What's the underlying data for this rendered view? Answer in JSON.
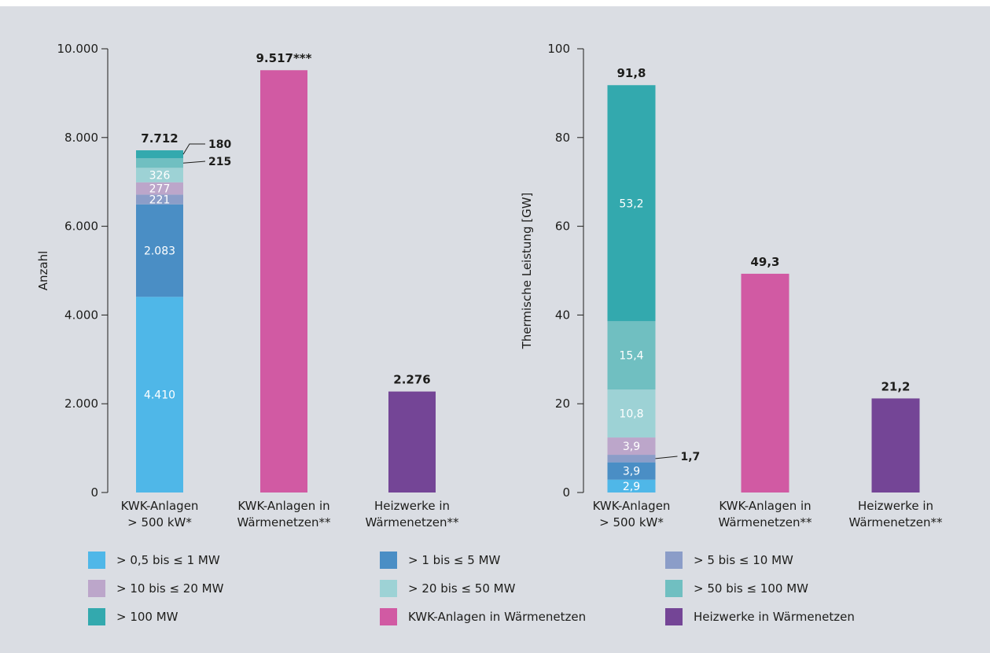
{
  "chart_data": [
    {
      "type": "bar",
      "stacked": true,
      "ylabel": "Anzahl",
      "ylim": [
        0,
        10000
      ],
      "yticks": [
        "0",
        "2.000",
        "4.000",
        "6.000",
        "8.000",
        "10.000"
      ],
      "categories": [
        [
          "KWK-Anlagen",
          "> 500 kW*"
        ],
        [
          "KWK-Anlagen in",
          "Wärmenetzen**"
        ],
        [
          "Heizwerke in",
          "Wärmenetzen**"
        ]
      ],
      "totals": [
        "7.712",
        "9.517***",
        "2.276"
      ],
      "stacks": [
        [
          {
            "key": "s1",
            "value": 4410,
            "label": "4.410"
          },
          {
            "key": "s2",
            "value": 2083,
            "label": "2.083"
          },
          {
            "key": "s3",
            "value": 221,
            "label": "221"
          },
          {
            "key": "s4",
            "value": 277,
            "label": "277"
          },
          {
            "key": "s5",
            "value": 326,
            "label": "326"
          },
          {
            "key": "s6",
            "value": 215,
            "label": "215",
            "callout": true
          },
          {
            "key": "s7",
            "value": 180,
            "label": "180",
            "callout": true
          }
        ],
        [
          {
            "key": "kwk",
            "value": 9517,
            "label": ""
          }
        ],
        [
          {
            "key": "heiz",
            "value": 2276,
            "label": ""
          }
        ]
      ]
    },
    {
      "type": "bar",
      "stacked": true,
      "ylabel": "Thermische Leistung [GW]",
      "ylim": [
        0,
        100
      ],
      "yticks": [
        "0",
        "20",
        "40",
        "60",
        "80",
        "100"
      ],
      "categories": [
        [
          "KWK-Anlagen",
          "> 500 kW*"
        ],
        [
          "KWK-Anlagen in",
          "Wärmenetzen**"
        ],
        [
          "Heizwerke in",
          "Wärmenetzen**"
        ]
      ],
      "totals": [
        "91,8",
        "49,3",
        "21,2"
      ],
      "stacks": [
        [
          {
            "key": "s1",
            "value": 2.9,
            "label": "2,9"
          },
          {
            "key": "s2",
            "value": 3.9,
            "label": "3,9"
          },
          {
            "key": "s3",
            "value": 1.7,
            "label": "1,7",
            "callout": true
          },
          {
            "key": "s4",
            "value": 3.9,
            "label": "3,9"
          },
          {
            "key": "s5",
            "value": 10.8,
            "label": "10,8"
          },
          {
            "key": "s6",
            "value": 15.4,
            "label": "15,4"
          },
          {
            "key": "s7",
            "value": 53.2,
            "label": "53,2"
          }
        ],
        [
          {
            "key": "kwk",
            "value": 49.3,
            "label": ""
          }
        ],
        [
          {
            "key": "heiz",
            "value": 21.2,
            "label": ""
          }
        ]
      ]
    }
  ],
  "legend": [
    {
      "key": "s1",
      "label": "> 0,5 bis ≤ 1 MW",
      "color": "#4fb7e8"
    },
    {
      "key": "s2",
      "label": "> 1 bis ≤ 5 MW",
      "color": "#4a8ec5"
    },
    {
      "key": "s3",
      "label": "> 5 bis ≤ 10 MW",
      "color": "#8b9dc8"
    },
    {
      "key": "s4",
      "label": "> 10 bis ≤ 20 MW",
      "color": "#bca6ca"
    },
    {
      "key": "s5",
      "label": "> 20 bis ≤ 50 MW",
      "color": "#9dd2d5"
    },
    {
      "key": "s6",
      "label": "> 50 bis ≤ 100 MW",
      "color": "#70bfc1"
    },
    {
      "key": "s7",
      "label": "> 100 MW",
      "color": "#33a9ae"
    },
    {
      "key": "kwk",
      "label": "KWK-Anlagen in Wärmenetzen",
      "color": "#d15aa3"
    },
    {
      "key": "heiz",
      "label": "Heizwerke in Wärmenetzen",
      "color": "#744596"
    }
  ]
}
